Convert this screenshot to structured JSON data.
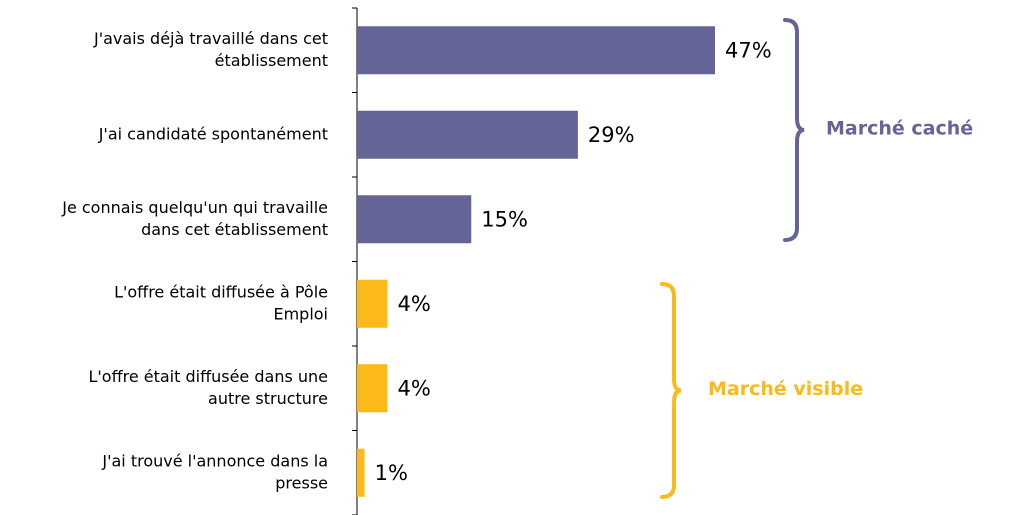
{
  "chart_data": {
    "type": "hbar",
    "categories": [
      [
        "J'avais déjà travaillé dans cet",
        "établissement"
      ],
      [
        "J'ai candidaté spontanément"
      ],
      [
        "Je connais quelqu'un qui travaille",
        "dans cet établissement"
      ],
      [
        "L'offre était diffusée à Pôle",
        "Emploi"
      ],
      [
        "L'offre était diffusée dans une",
        "autre structure"
      ],
      [
        "J'ai trouvé l'annonce dans la",
        "presse"
      ]
    ],
    "values": [
      47,
      29,
      15,
      4,
      4,
      1
    ],
    "value_labels": [
      "47%",
      "29%",
      "15%",
      "4%",
      "4%",
      "1%"
    ],
    "colors": [
      "#646496",
      "#646496",
      "#646496",
      "#fbb91a",
      "#fbb91a",
      "#fbb91a"
    ],
    "xlim": [
      0,
      60
    ],
    "annotations": [
      {
        "text": "Marché caché",
        "color": "#646496"
      },
      {
        "text": "Marché visible",
        "color": "#fbb91a"
      }
    ]
  }
}
